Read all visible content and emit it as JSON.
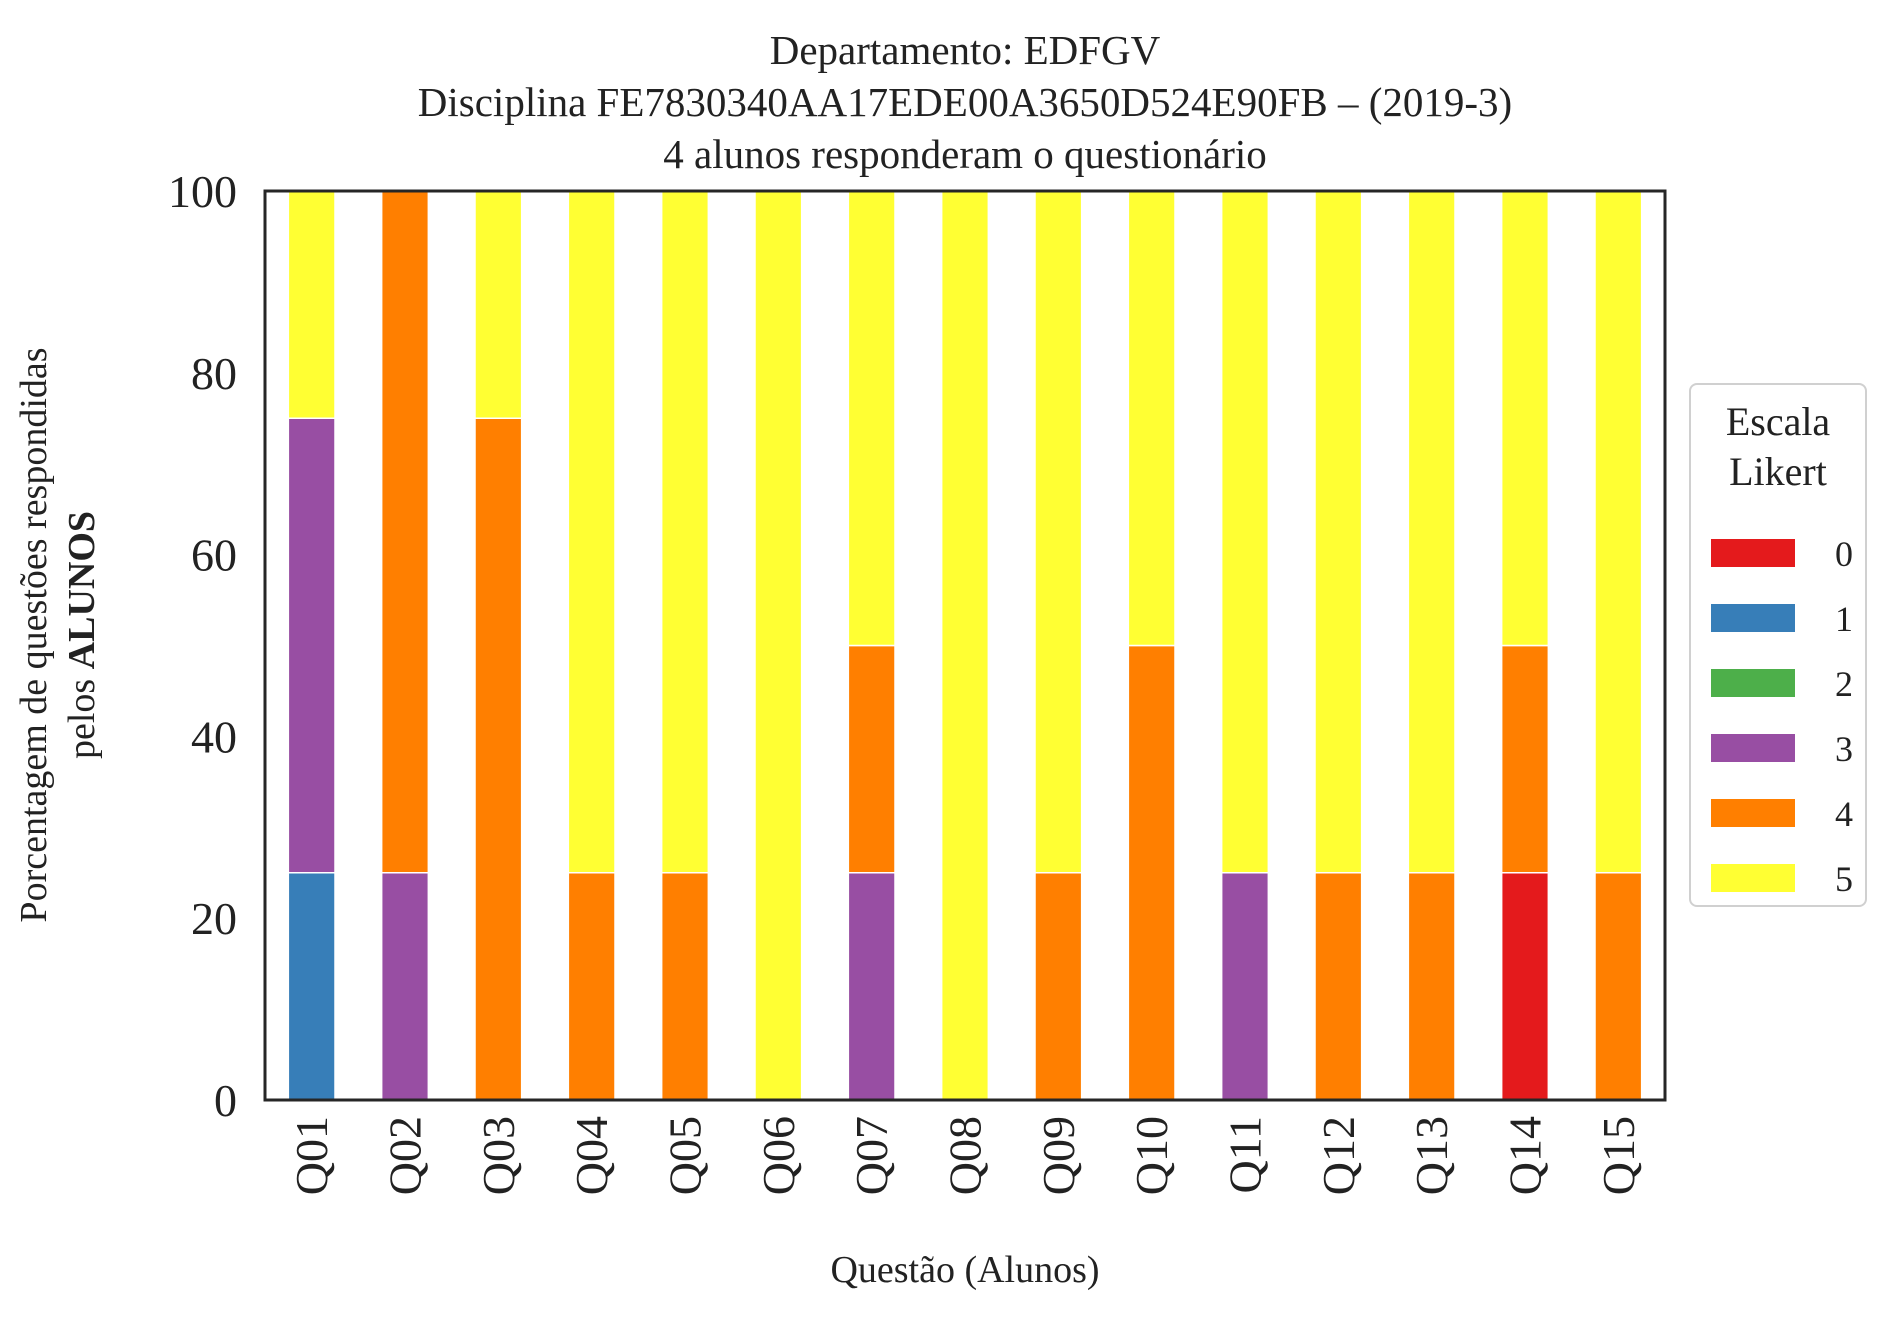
{
  "chart_data": {
    "type": "bar",
    "stacked": true,
    "title": "Departamento: EDFGV",
    "subtitle_line_2": "Disciplina FE7830340AA17EDE00A3650D524E90FB – (2019-3)",
    "subtitle_line_3": "4 alunos responderam o questionário",
    "xlabel": "Questão (Alunos)",
    "ylabel_line_1": "Porcentagem de questões respondidas",
    "ylabel_line_2_prefix": "pelos ",
    "ylabel_line_2_bold": "ALUNOS",
    "ylim": [
      0,
      100
    ],
    "yticks": [
      "0",
      "20",
      "40",
      "60",
      "80",
      "100"
    ],
    "grid": false,
    "legend_position": "right",
    "legend_title_line_1": "Escala",
    "legend_title_line_2": "Likert",
    "categories": [
      "Q01",
      "Q02",
      "Q03",
      "Q04",
      "Q05",
      "Q06",
      "Q07",
      "Q08",
      "Q09",
      "Q10",
      "Q11",
      "Q12",
      "Q13",
      "Q14",
      "Q15"
    ],
    "series": [
      {
        "name": "0",
        "color": "#e41a1c",
        "values": [
          0,
          0,
          0,
          0,
          0,
          0,
          0,
          0,
          0,
          0,
          0,
          0,
          0,
          25,
          0
        ]
      },
      {
        "name": "1",
        "color": "#377eb8",
        "values": [
          25,
          0,
          0,
          0,
          0,
          0,
          0,
          0,
          0,
          0,
          0,
          0,
          0,
          0,
          0
        ]
      },
      {
        "name": "2",
        "color": "#4daf4a",
        "values": [
          0,
          0,
          0,
          0,
          0,
          0,
          0,
          0,
          0,
          0,
          0,
          0,
          0,
          0,
          0
        ]
      },
      {
        "name": "3",
        "color": "#984ea3",
        "values": [
          50,
          25,
          0,
          0,
          0,
          0,
          25,
          0,
          0,
          0,
          25,
          0,
          0,
          0,
          0
        ]
      },
      {
        "name": "4",
        "color": "#ff7f00",
        "values": [
          0,
          75,
          75,
          25,
          25,
          0,
          25,
          0,
          25,
          50,
          0,
          25,
          25,
          25,
          25
        ]
      },
      {
        "name": "5",
        "color": "#ffff33",
        "values": [
          25,
          0,
          25,
          75,
          75,
          100,
          50,
          100,
          75,
          50,
          75,
          75,
          75,
          50,
          75
        ]
      }
    ]
  }
}
